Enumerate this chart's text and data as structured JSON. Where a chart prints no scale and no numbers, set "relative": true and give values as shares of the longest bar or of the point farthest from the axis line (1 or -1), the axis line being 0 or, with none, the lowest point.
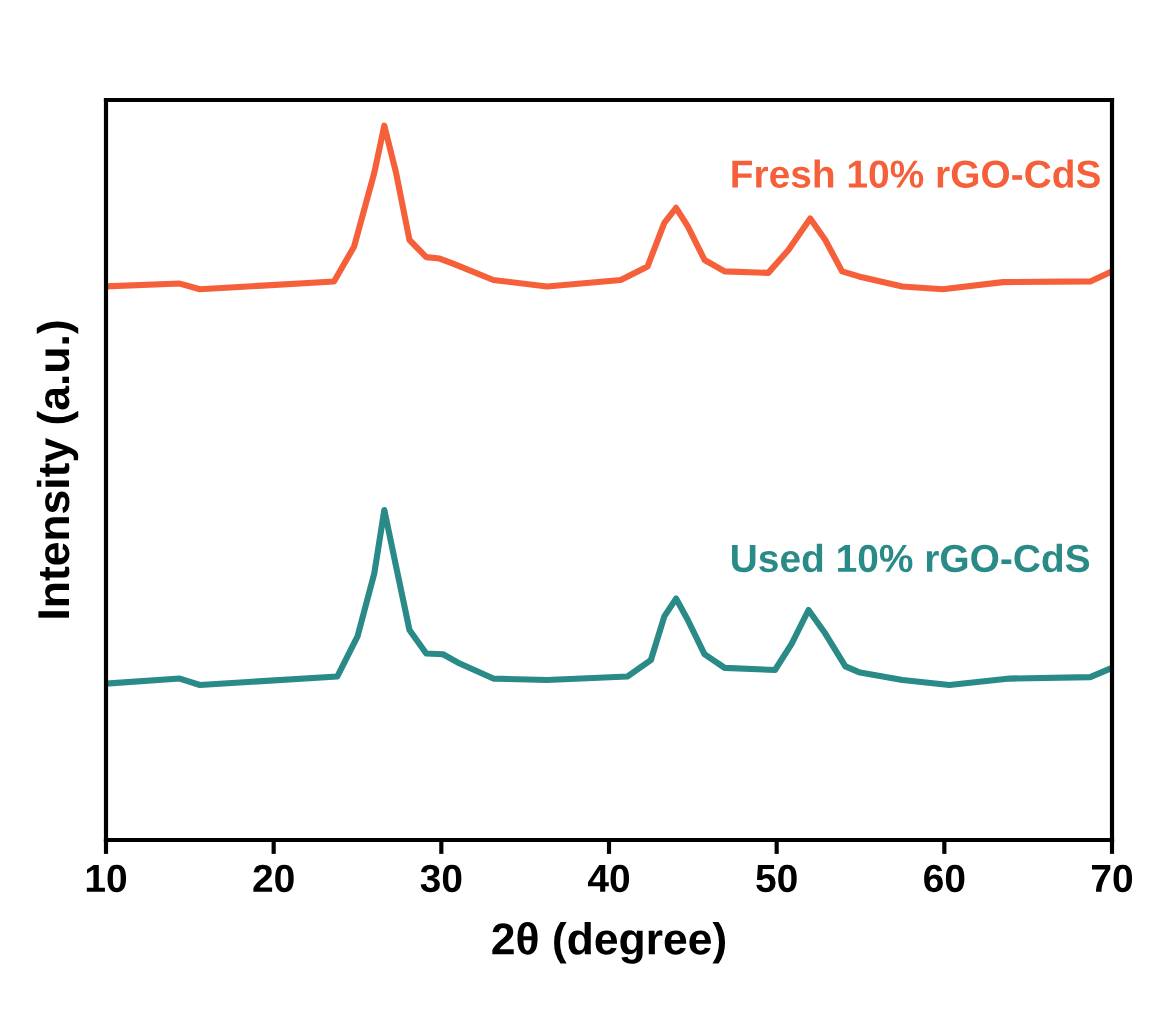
{
  "chart_data": {
    "type": "line",
    "relative": true,
    "xlabel": "2θ (degree)",
    "ylabel": "Intensity (a.u.)",
    "xlim": [
      10,
      70
    ],
    "xticks": [
      10,
      20,
      30,
      40,
      50,
      60,
      70
    ],
    "tick_labels": "x",
    "grid": false,
    "legend": false,
    "marker": "none",
    "line_style": "solid",
    "series": [
      {
        "name": "Fresh 10% rGO-CdS",
        "color": "#f5603a",
        "x": [
          10.0,
          14.4,
          15.6,
          23.6,
          24.8,
          26.0,
          26.6,
          27.3,
          28.1,
          29.1,
          29.9,
          30.7,
          33.1,
          36.3,
          40.7,
          42.3,
          43.3,
          44.0,
          44.7,
          45.7,
          46.9,
          49.5,
          50.7,
          52.0,
          52.9,
          53.9,
          54.9,
          57.5,
          59.9,
          63.5,
          68.7,
          70.0
        ],
        "values": [
          0.775,
          0.779,
          0.771,
          0.782,
          0.831,
          0.934,
          1.0,
          0.934,
          0.84,
          0.816,
          0.814,
          0.807,
          0.784,
          0.775,
          0.784,
          0.803,
          0.864,
          0.885,
          0.859,
          0.812,
          0.796,
          0.794,
          0.826,
          0.87,
          0.84,
          0.796,
          0.789,
          0.775,
          0.771,
          0.781,
          0.782,
          0.796
        ]
      },
      {
        "name": "Used 10% rGO-CdS",
        "color": "#2a8a87",
        "x": [
          10.0,
          14.4,
          15.6,
          23.8,
          25.0,
          26.0,
          26.6,
          27.3,
          28.1,
          29.1,
          30.1,
          31.1,
          33.1,
          36.3,
          41.1,
          42.5,
          43.3,
          44.0,
          44.7,
          45.7,
          46.9,
          49.9,
          50.9,
          51.9,
          52.9,
          54.1,
          54.9,
          57.5,
          60.3,
          63.9,
          68.7,
          70.0
        ],
        "values": [
          0.219,
          0.226,
          0.217,
          0.229,
          0.285,
          0.373,
          0.462,
          0.383,
          0.294,
          0.261,
          0.26,
          0.247,
          0.226,
          0.224,
          0.229,
          0.252,
          0.313,
          0.338,
          0.308,
          0.26,
          0.241,
          0.238,
          0.275,
          0.322,
          0.289,
          0.243,
          0.235,
          0.224,
          0.217,
          0.226,
          0.228,
          0.241
        ]
      }
    ]
  }
}
